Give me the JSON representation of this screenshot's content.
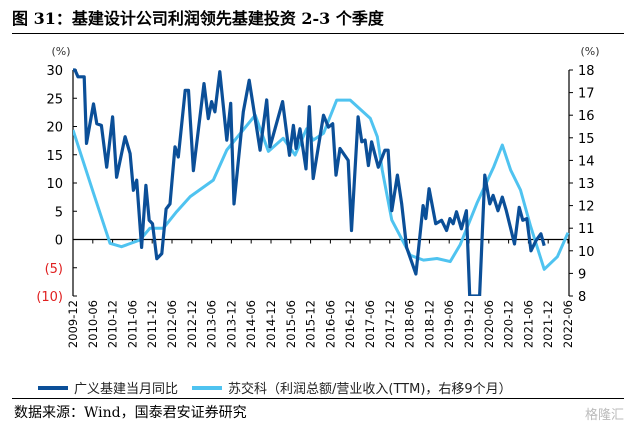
{
  "title": "图 31：基建设计公司利润领先基建投资 2-3 个季度",
  "source": "数据来源：Wind，国泰君安证券研究",
  "watermark": "格隆汇",
  "chart_data": {
    "type": "line",
    "title": "基建设计公司利润领先基建投资 2-3 个季度",
    "left_unit": "(%)",
    "right_unit": "(%)",
    "left_ylim": [
      -10,
      30
    ],
    "right_ylim": [
      8,
      18
    ],
    "left_ticks": [
      30,
      25,
      20,
      15,
      10,
      5,
      0,
      -5,
      -10
    ],
    "left_tick_labels": [
      "30",
      "25",
      "20",
      "15",
      "10",
      "5",
      "0",
      "(5)",
      "(10)"
    ],
    "right_ticks": [
      18,
      17,
      16,
      15,
      14,
      13,
      12,
      11,
      10,
      9,
      8
    ],
    "right_tick_labels": [
      "18",
      "17",
      "16",
      "15",
      "14",
      "13",
      "12",
      "11",
      "10",
      "9",
      "8"
    ],
    "negative_label_color": "#e02020",
    "x_start": "2009-12",
    "x_months_total": 150,
    "x_tick_labels": [
      "2009-12",
      "2010-06",
      "2010-12",
      "2011-06",
      "2011-12",
      "2012-06",
      "2012-12",
      "2013-06",
      "2013-12",
      "2014-06",
      "2014-12",
      "2015-06",
      "2015-12",
      "2016-06",
      "2016-12",
      "2017-06",
      "2017-12",
      "2018-06",
      "2018-12",
      "2019-06",
      "2019-12",
      "2020-06",
      "2020-12",
      "2021-06",
      "2021-12",
      "2022-06"
    ],
    "series": [
      {
        "name": "广义基建当月同比",
        "axis": "left",
        "color": "#0b4f98",
        "x_months": [
          0,
          0.6,
          1.5,
          3.4,
          4.1,
          6.2,
          7.2,
          8.6,
          10.2,
          12,
          13.2,
          15.8,
          17.3,
          18.3,
          19.3,
          20.8,
          22.1,
          23.1,
          24.1,
          25.4,
          26.9,
          28.2,
          29.4,
          30.9,
          31.9,
          34,
          35,
          36.5,
          39.7,
          41,
          42,
          43,
          44.5,
          46.6,
          47.8,
          48.8,
          51.6,
          53.4,
          56.7,
          58.7,
          59.7,
          63.5,
          65.6,
          66.8,
          67.6,
          68.8,
          70.6,
          71.6,
          72.8,
          75.9,
          77.4,
          78.7,
          79.7,
          80.9,
          83.4,
          84.4,
          86.4,
          87.5,
          88.5,
          89.5,
          90.5,
          92.5,
          94.5,
          95.5,
          96.6,
          98.3,
          99.6,
          101.1,
          103.9,
          106.1,
          106.9,
          107.9,
          109.9,
          111.7,
          113.2,
          114.2,
          115.2,
          116.2,
          117.7,
          119.2,
          120.2,
          123.2,
          124.8,
          126.3,
          127.3,
          128.8,
          130.1,
          131.3,
          133.8,
          135.2,
          136.3,
          137.5,
          138.8,
          140.3,
          141.8,
          142.8
        ],
        "values": [
          30,
          30,
          28.8,
          28.8,
          17,
          24,
          20.5,
          20.2,
          12.8,
          21.7,
          11,
          18.2,
          15.2,
          8.7,
          10.5,
          -1.4,
          9.6,
          3.4,
          2.8,
          -3.4,
          -2.5,
          5.4,
          6.3,
          16.4,
          14.6,
          26.4,
          26.4,
          12.2,
          27.6,
          21.4,
          24.4,
          22.6,
          29.7,
          17.6,
          24.1,
          6.3,
          22.6,
          28.2,
          15.8,
          24.7,
          16.4,
          24.4,
          14.9,
          20.2,
          16.1,
          19.6,
          12.5,
          23.5,
          10.8,
          22,
          19.9,
          20.5,
          11.4,
          16.1,
          14,
          1.6,
          21.7,
          17.3,
          17.6,
          13.1,
          17.3,
          12.8,
          15.8,
          15.8,
          5.1,
          11.4,
          6.3,
          -1.4,
          -6.1,
          6,
          3.7,
          9,
          2.8,
          3.4,
          1.6,
          3.7,
          2.8,
          4.9,
          1.9,
          5.1,
          -10,
          -10,
          11.4,
          6.3,
          7.8,
          5.1,
          7.5,
          5.1,
          -0.8,
          5.7,
          3.4,
          3.7,
          -2,
          -0.2,
          1,
          -1.1
        ]
      },
      {
        "name": "苏交科（利润总额/营业收入(TTM)，右移9个月）",
        "axis": "right",
        "color": "#4fc3f0",
        "x_months": [
          0,
          6.2,
          11.2,
          14.7,
          20.3,
          23.3,
          27.4,
          31.4,
          35.5,
          42.5,
          46.6,
          55.2,
          59.2,
          63.7,
          67.3,
          70.8,
          72.8,
          75.9,
          79.9,
          84,
          90.1,
          92.2,
          93.7,
          96.6,
          102.2,
          106.2,
          110.3,
          114.3,
          117.3,
          122.4,
          127.5,
          130.1,
          132.6,
          135.6,
          138.7,
          142.8,
          146.8,
          150
        ],
        "values": [
          15.35,
          12.55,
          10.33,
          10.18,
          10.48,
          11.0,
          11.0,
          11.73,
          12.4,
          13.13,
          14.46,
          16.0,
          14.4,
          14.98,
          14.24,
          15.4,
          14.9,
          15.2,
          16.67,
          16.67,
          15.86,
          15.05,
          13.58,
          11.36,
          9.8,
          9.59,
          9.66,
          9.52,
          10.26,
          12.1,
          13.72,
          14.68,
          13.58,
          12.69,
          11.07,
          9.18,
          9.74,
          10.8
        ]
      }
    ],
    "legend": [
      "广义基建当月同比",
      "苏交科（利润总额/营业收入(TTM)，右移9个月）"
    ],
    "legend_position": "bottom"
  }
}
